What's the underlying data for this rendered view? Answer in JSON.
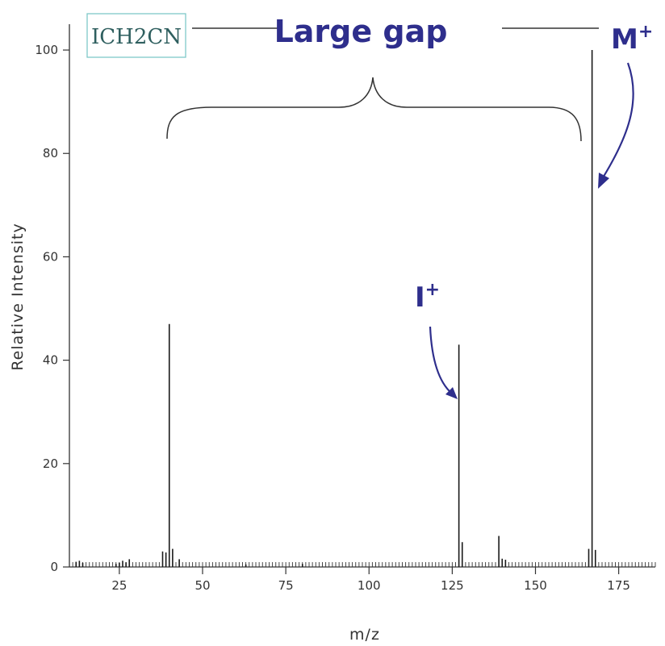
{
  "chart_data": {
    "type": "bar",
    "xlabel": "m/z",
    "ylabel": "Relative Intensity",
    "xlim": [
      10,
      186
    ],
    "ylim": [
      0,
      105
    ],
    "x_ticks": [
      25,
      50,
      75,
      100,
      125,
      150,
      175
    ],
    "y_ticks": [
      0,
      20,
      40,
      60,
      80,
      100
    ],
    "grid": false,
    "peaks": [
      {
        "x": 12,
        "y": 1.0
      },
      {
        "x": 13,
        "y": 1.2
      },
      {
        "x": 14,
        "y": 0.8
      },
      {
        "x": 24,
        "y": 0.6
      },
      {
        "x": 25,
        "y": 0.8
      },
      {
        "x": 26,
        "y": 1.2
      },
      {
        "x": 27,
        "y": 0.9
      },
      {
        "x": 28,
        "y": 1.5
      },
      {
        "x": 38,
        "y": 3.0
      },
      {
        "x": 39,
        "y": 2.8
      },
      {
        "x": 40,
        "y": 47.0
      },
      {
        "x": 41,
        "y": 3.5
      },
      {
        "x": 43,
        "y": 1.5
      },
      {
        "x": 63,
        "y": 0.5
      },
      {
        "x": 80,
        "y": 0.6
      },
      {
        "x": 127,
        "y": 43.0
      },
      {
        "x": 128,
        "y": 4.8
      },
      {
        "x": 139,
        "y": 6.0
      },
      {
        "x": 140,
        "y": 1.6
      },
      {
        "x": 141,
        "y": 1.4
      },
      {
        "x": 166,
        "y": 3.5
      },
      {
        "x": 167,
        "y": 100.0
      },
      {
        "x": 168,
        "y": 3.3
      }
    ]
  },
  "annotations": {
    "compound": "ICH2CN",
    "gap_label": "Large gap",
    "molecular_ion": "M+",
    "iodine_ion": "I+"
  },
  "colors": {
    "annotation": "#2e2e8c",
    "axis": "#333333",
    "compound_box": "#7fc8c8",
    "compound_text": "#2f5f5f"
  }
}
